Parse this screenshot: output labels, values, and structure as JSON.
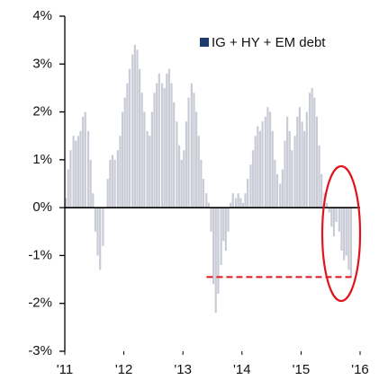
{
  "chart_data": {
    "type": "bar",
    "legend_label": "IG + HY + EM debt",
    "legend_color": "#1f3a6e",
    "legend_position": "upper right",
    "series": [
      {
        "name": "IG + HY + EM debt",
        "color": "#c9ccd6",
        "x": [
          2011.0,
          2011.04,
          2011.08,
          2011.13,
          2011.17,
          2011.21,
          2011.25,
          2011.29,
          2011.33,
          2011.38,
          2011.42,
          2011.46,
          2011.5,
          2011.54,
          2011.58,
          2011.63,
          2011.67,
          2011.71,
          2011.75,
          2011.79,
          2011.83,
          2011.88,
          2011.92,
          2011.96,
          2012.0,
          2012.04,
          2012.08,
          2012.13,
          2012.17,
          2012.21,
          2012.25,
          2012.29,
          2012.33,
          2012.38,
          2012.42,
          2012.46,
          2012.5,
          2012.54,
          2012.58,
          2012.63,
          2012.67,
          2012.71,
          2012.75,
          2012.79,
          2012.83,
          2012.88,
          2012.92,
          2012.96,
          2013.0,
          2013.04,
          2013.08,
          2013.13,
          2013.17,
          2013.21,
          2013.25,
          2013.29,
          2013.33,
          2013.38,
          2013.42,
          2013.46,
          2013.5,
          2013.54,
          2013.58,
          2013.63,
          2013.67,
          2013.71,
          2013.75,
          2013.79,
          2013.83,
          2013.88,
          2013.92,
          2013.96,
          2014.0,
          2014.04,
          2014.08,
          2014.13,
          2014.17,
          2014.21,
          2014.25,
          2014.29,
          2014.33,
          2014.38,
          2014.42,
          2014.46,
          2014.5,
          2014.54,
          2014.58,
          2014.63,
          2014.67,
          2014.71,
          2014.75,
          2014.79,
          2014.83,
          2014.88,
          2014.92,
          2014.96,
          2015.0,
          2015.04,
          2015.08,
          2015.13,
          2015.17,
          2015.21,
          2015.25,
          2015.29,
          2015.33,
          2015.38,
          2015.42,
          2015.46,
          2015.5,
          2015.54,
          2015.58,
          2015.63,
          2015.67,
          2015.71,
          2015.75,
          2015.79,
          2015.83
        ],
        "values": [
          0.2,
          0.8,
          1.2,
          1.5,
          1.4,
          1.5,
          1.6,
          1.9,
          2.0,
          1.6,
          1.0,
          0.3,
          -0.5,
          -1.0,
          -1.3,
          -0.8,
          0.0,
          0.6,
          1.0,
          1.1,
          1.0,
          1.2,
          1.5,
          2.0,
          2.3,
          2.6,
          2.9,
          3.2,
          3.4,
          3.3,
          2.9,
          2.4,
          2.0,
          1.6,
          1.5,
          2.0,
          2.4,
          2.6,
          2.8,
          2.6,
          2.5,
          2.8,
          2.9,
          2.6,
          2.2,
          1.8,
          1.3,
          1.0,
          1.2,
          1.8,
          2.3,
          2.6,
          2.4,
          2.0,
          1.5,
          1.0,
          0.6,
          0.3,
          0.1,
          -0.5,
          -1.6,
          -2.2,
          -1.8,
          -1.2,
          -0.7,
          -0.9,
          -0.5,
          0.1,
          0.3,
          0.2,
          0.3,
          0.2,
          0.1,
          0.3,
          0.6,
          0.9,
          1.2,
          1.5,
          1.7,
          1.6,
          1.8,
          1.9,
          2.1,
          2.0,
          1.6,
          1.0,
          0.7,
          0.5,
          0.8,
          1.4,
          1.9,
          1.6,
          1.2,
          1.5,
          1.9,
          2.1,
          1.8,
          1.6,
          2.0,
          2.4,
          2.5,
          2.3,
          1.9,
          1.3,
          0.7,
          0.3,
          0.1,
          -0.1,
          -0.4,
          -0.6,
          -0.3,
          -0.5,
          -0.9,
          -1.1,
          -1.0,
          -1.3,
          -1.45
        ]
      }
    ],
    "xlim": [
      2011,
      2016
    ],
    "xticks": [
      {
        "value": 2011,
        "label": "'11"
      },
      {
        "value": 2012,
        "label": "'12"
      },
      {
        "value": 2013,
        "label": "'13"
      },
      {
        "value": 2014,
        "label": "'14"
      },
      {
        "value": 2015,
        "label": "'15"
      },
      {
        "value": 2016,
        "label": "'16"
      }
    ],
    "ylim": [
      -3,
      4
    ],
    "yticks": [
      {
        "value": -3,
        "label": "-3%"
      },
      {
        "value": -2,
        "label": "-2%"
      },
      {
        "value": -1,
        "label": "-1%"
      },
      {
        "value": 0,
        "label": "0%"
      },
      {
        "value": 1,
        "label": "1%"
      },
      {
        "value": 2,
        "label": "2%"
      },
      {
        "value": 3,
        "label": "3%"
      },
      {
        "value": 4,
        "label": "4%"
      }
    ],
    "reference_line": {
      "y": -1.45,
      "x": [
        2013.4,
        2015.9
      ],
      "color": "#e0141e"
    },
    "highlight_color": "#e0141e",
    "grid": false
  }
}
